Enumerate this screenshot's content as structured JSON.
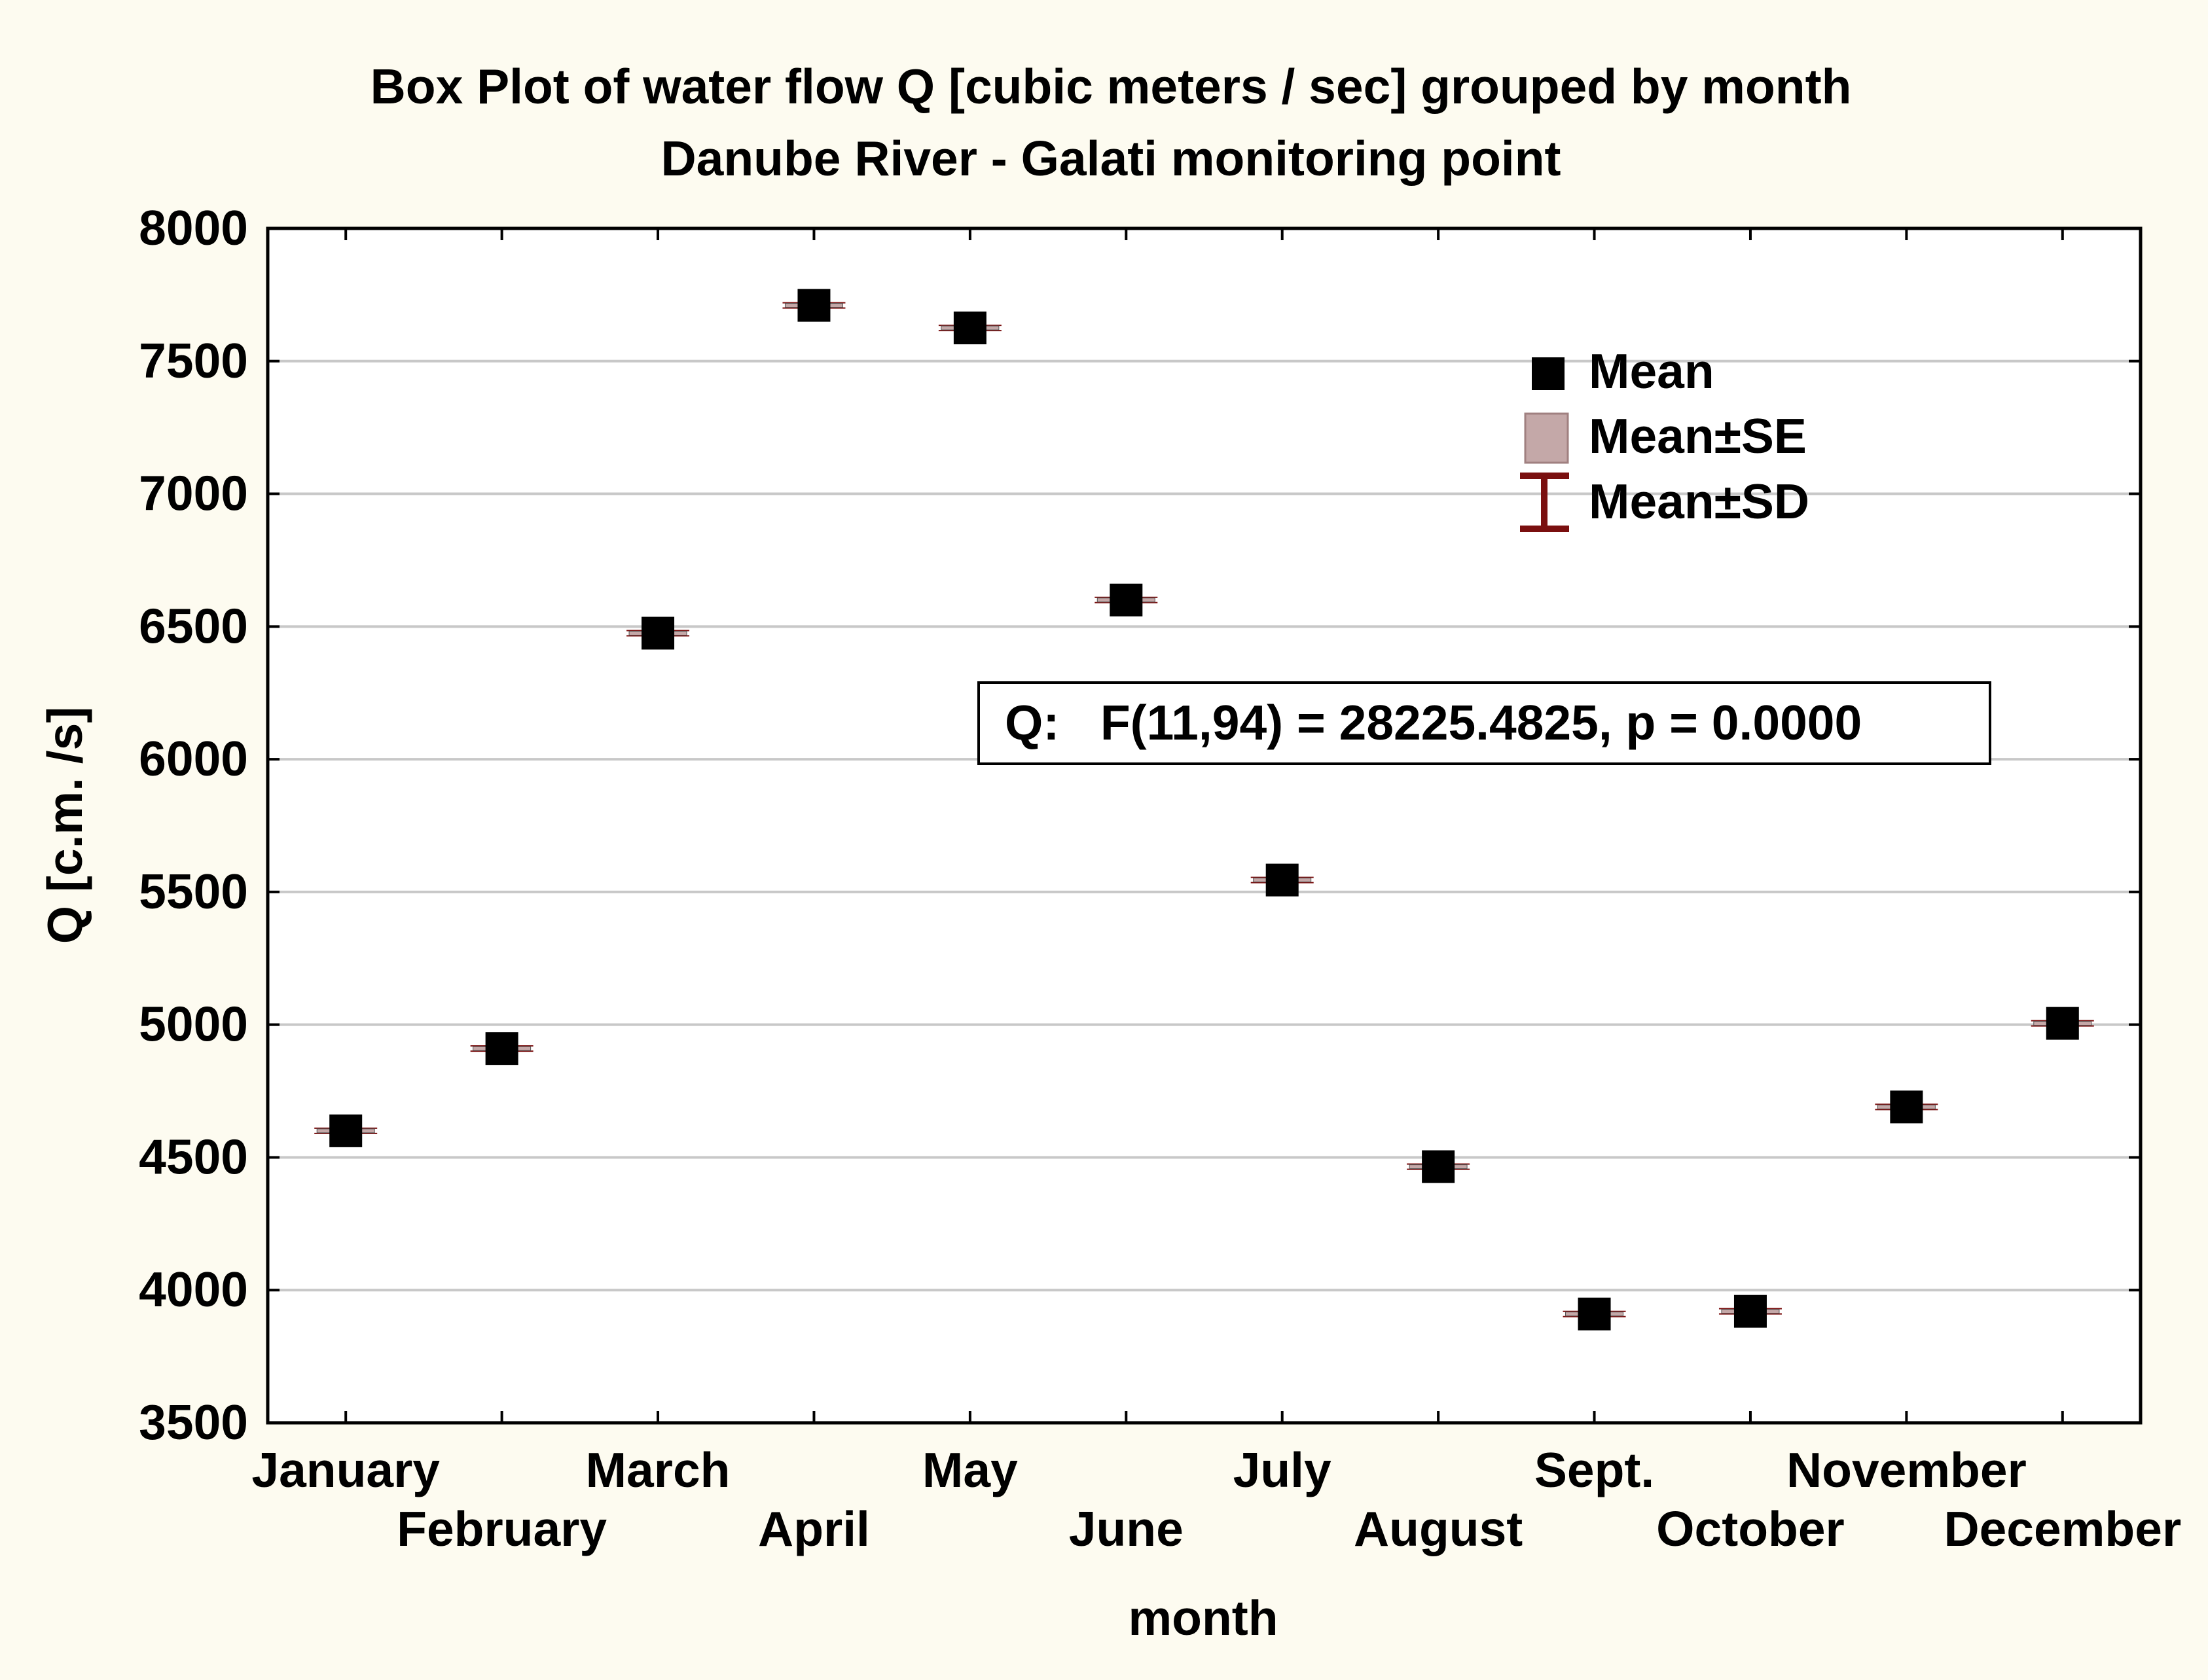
{
  "chart_data": {
    "type": "scatter",
    "title": "Box Plot of water flow Q [cubic meters / sec] grouped by month",
    "subtitle": "Danube River - Galati monitoring point",
    "xlabel": "month",
    "ylabel": "Q [c.m. /s]",
    "ylim": [
      3500,
      8000
    ],
    "yticks": [
      3500,
      4000,
      4500,
      5000,
      5500,
      6000,
      6500,
      7000,
      7500,
      8000
    ],
    "grid": true,
    "categories": [
      "January",
      "February",
      "March",
      "April",
      "May",
      "June",
      "July",
      "August",
      "Sept.",
      "October",
      "November",
      "December"
    ],
    "series": [
      {
        "name": "Mean",
        "values": [
          4600,
          4910,
          6475,
          7710,
          7625,
          6600,
          5545,
          4465,
          3910,
          3920,
          4690,
          5005
        ]
      }
    ],
    "se": [
      5,
      5,
      5,
      5,
      5,
      5,
      5,
      5,
      5,
      5,
      5,
      5
    ],
    "sd": [
      8,
      8,
      8,
      8,
      8,
      8,
      8,
      8,
      8,
      8,
      8,
      8
    ],
    "legend": {
      "position": "top-right",
      "entries": [
        "Mean",
        "Mean±SE",
        "Mean±SD"
      ]
    },
    "annotation": "Q:   F(11,94) = 28225.4825, p = 0.0000",
    "colors": {
      "mean_marker": "#000000",
      "se_box": "#c4a8a8",
      "sd_whisker": "#7a0f0f",
      "grid": "#c8c8c8",
      "page_background": "#fdfbf0",
      "plot_background": "#ffffff"
    }
  }
}
